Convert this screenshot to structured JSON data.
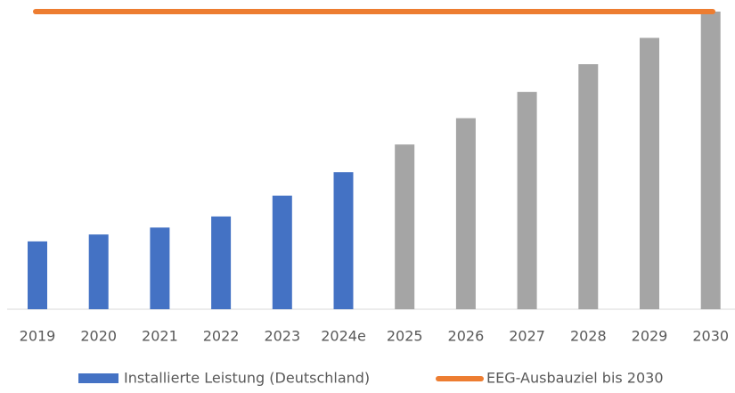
{
  "chart_data": {
    "type": "bar",
    "categories": [
      "2019",
      "2020",
      "2021",
      "2022",
      "2023",
      "2024e",
      "2025",
      "2026",
      "2027",
      "2028",
      "2029",
      "2030"
    ],
    "series": [
      {
        "name": "Installierte Leistung (Deutschland)",
        "color": "#4472c4",
        "values": [
          49,
          54,
          59,
          67,
          82,
          99,
          null,
          null,
          null,
          null,
          null,
          null
        ]
      },
      {
        "color": "#a5a5a5",
        "values": [
          null,
          null,
          null,
          null,
          null,
          null,
          119,
          138,
          157,
          177,
          196,
          215
        ]
      }
    ],
    "target": {
      "name": "EEG-Ausbauziel bis 2030",
      "color": "#ed7d31",
      "value": 215
    }
  }
}
